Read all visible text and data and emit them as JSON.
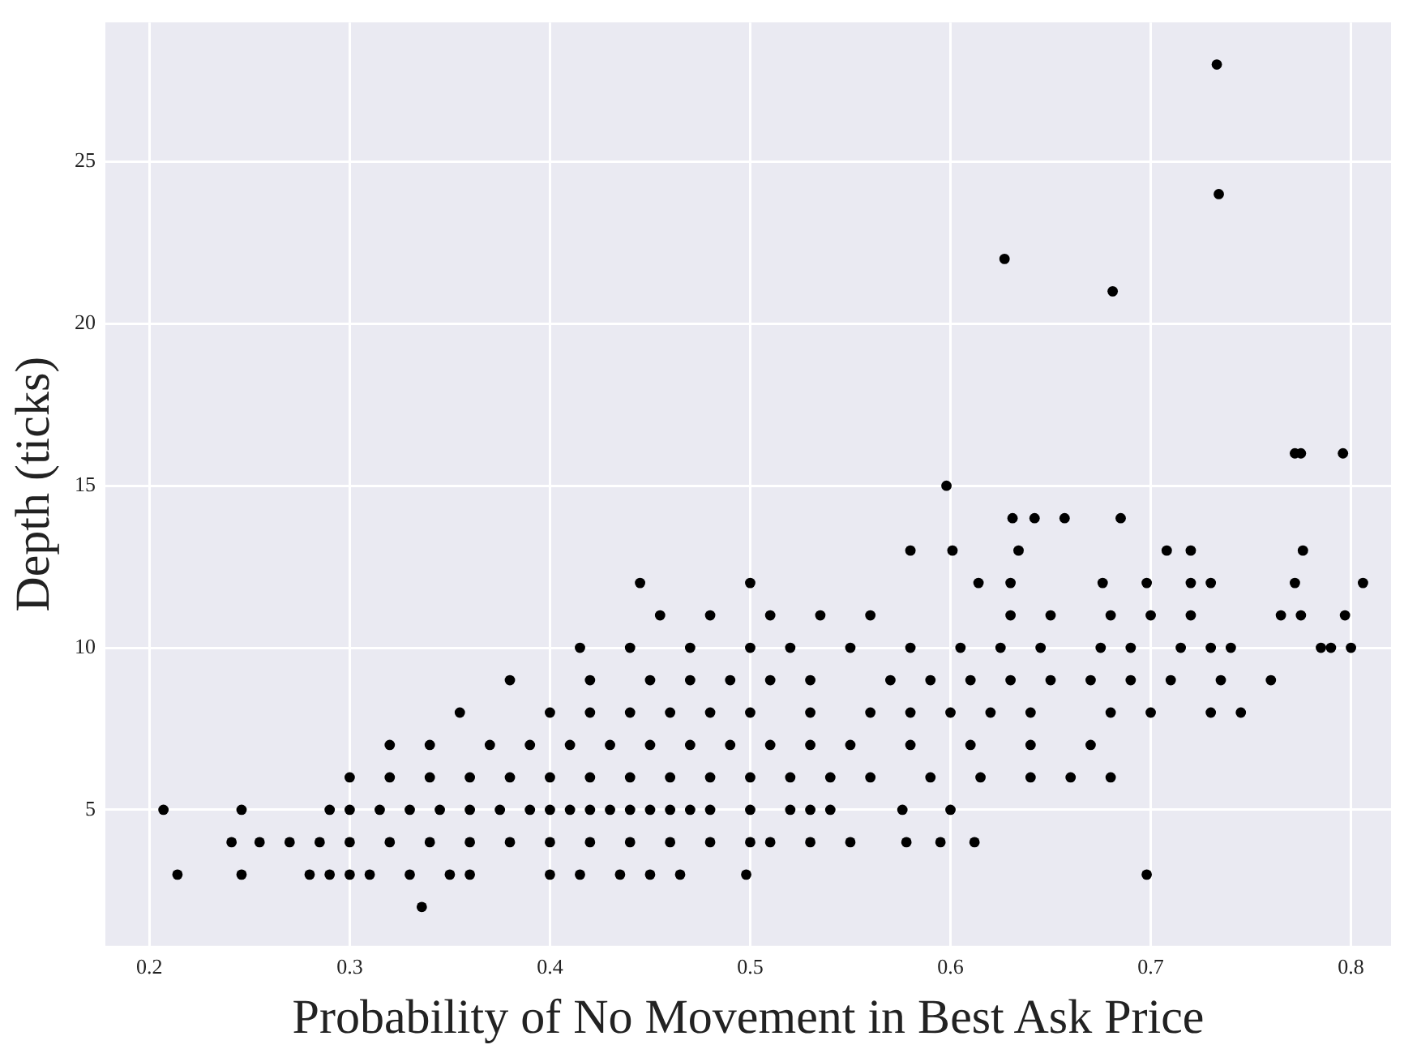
{
  "chart_data": {
    "type": "scatter",
    "xlabel": "Probability of No Movement in Best Ask Price",
    "ylabel": "Depth (ticks)",
    "xlim": [
      0.178,
      0.82
    ],
    "ylim": [
      0.8,
      29.3
    ],
    "xticks": [
      0.2,
      0.3,
      0.4,
      0.5,
      0.6,
      0.7,
      0.8
    ],
    "yticks": [
      5,
      10,
      15,
      20,
      25
    ],
    "grid": true,
    "marker": "circle",
    "legend": false,
    "series": [
      {
        "color": "#000000",
        "x": [
          0.207,
          0.246,
          0.29,
          0.3,
          0.315,
          0.33,
          0.345,
          0.36,
          0.375,
          0.39,
          0.4,
          0.41,
          0.42,
          0.43,
          0.44,
          0.45,
          0.46,
          0.47,
          0.48,
          0.5,
          0.52,
          0.53,
          0.54,
          0.576,
          0.6,
          0.214,
          0.246,
          0.28,
          0.29,
          0.3,
          0.31,
          0.33,
          0.35,
          0.36,
          0.4,
          0.415,
          0.435,
          0.45,
          0.465,
          0.498,
          0.698,
          0.336,
          0.241,
          0.255,
          0.27,
          0.285,
          0.3,
          0.32,
          0.34,
          0.36,
          0.38,
          0.4,
          0.42,
          0.44,
          0.46,
          0.48,
          0.5,
          0.51,
          0.53,
          0.55,
          0.578,
          0.595,
          0.612,
          0.3,
          0.32,
          0.34,
          0.36,
          0.38,
          0.4,
          0.42,
          0.44,
          0.46,
          0.48,
          0.5,
          0.52,
          0.54,
          0.56,
          0.59,
          0.615,
          0.64,
          0.66,
          0.68,
          0.32,
          0.34,
          0.37,
          0.39,
          0.41,
          0.43,
          0.45,
          0.47,
          0.49,
          0.51,
          0.53,
          0.55,
          0.58,
          0.61,
          0.64,
          0.67,
          0.355,
          0.4,
          0.42,
          0.44,
          0.46,
          0.48,
          0.5,
          0.53,
          0.56,
          0.58,
          0.6,
          0.62,
          0.64,
          0.68,
          0.7,
          0.73,
          0.745,
          0.38,
          0.42,
          0.45,
          0.47,
          0.49,
          0.51,
          0.53,
          0.57,
          0.59,
          0.61,
          0.63,
          0.65,
          0.67,
          0.69,
          0.71,
          0.735,
          0.76,
          0.415,
          0.44,
          0.47,
          0.5,
          0.52,
          0.55,
          0.58,
          0.605,
          0.625,
          0.645,
          0.675,
          0.69,
          0.715,
          0.73,
          0.74,
          0.785,
          0.79,
          0.8,
          0.455,
          0.48,
          0.51,
          0.535,
          0.56,
          0.63,
          0.65,
          0.68,
          0.7,
          0.72,
          0.765,
          0.775,
          0.797,
          0.445,
          0.5,
          0.614,
          0.63,
          0.676,
          0.698,
          0.72,
          0.73,
          0.772,
          0.806,
          0.58,
          0.601,
          0.634,
          0.708,
          0.72,
          0.776,
          0.631,
          0.642,
          0.657,
          0.685,
          0.598,
          0.772,
          0.775,
          0.796,
          0.681,
          0.627,
          0.734,
          0.733
        ],
        "values": [
          5,
          5,
          5,
          5,
          5,
          5,
          5,
          5,
          5,
          5,
          5,
          5,
          5,
          5,
          5,
          5,
          5,
          5,
          5,
          5,
          5,
          5,
          5,
          5,
          5,
          3,
          3,
          3,
          3,
          3,
          3,
          3,
          3,
          3,
          3,
          3,
          3,
          3,
          3,
          3,
          3,
          2,
          4,
          4,
          4,
          4,
          4,
          4,
          4,
          4,
          4,
          4,
          4,
          4,
          4,
          4,
          4,
          4,
          4,
          4,
          4,
          4,
          4,
          6,
          6,
          6,
          6,
          6,
          6,
          6,
          6,
          6,
          6,
          6,
          6,
          6,
          6,
          6,
          6,
          6,
          6,
          6,
          7,
          7,
          7,
          7,
          7,
          7,
          7,
          7,
          7,
          7,
          7,
          7,
          7,
          7,
          7,
          7,
          8,
          8,
          8,
          8,
          8,
          8,
          8,
          8,
          8,
          8,
          8,
          8,
          8,
          8,
          8,
          8,
          8,
          9,
          9,
          9,
          9,
          9,
          9,
          9,
          9,
          9,
          9,
          9,
          9,
          9,
          9,
          9,
          9,
          9,
          10,
          10,
          10,
          10,
          10,
          10,
          10,
          10,
          10,
          10,
          10,
          10,
          10,
          10,
          10,
          10,
          10,
          10,
          11,
          11,
          11,
          11,
          11,
          11,
          11,
          11,
          11,
          11,
          11,
          11,
          11,
          12,
          12,
          12,
          12,
          12,
          12,
          12,
          12,
          12,
          12,
          13,
          13,
          13,
          13,
          13,
          13,
          14,
          14,
          14,
          14,
          15,
          16,
          16,
          16,
          21,
          22,
          24,
          28
        ]
      }
    ]
  }
}
